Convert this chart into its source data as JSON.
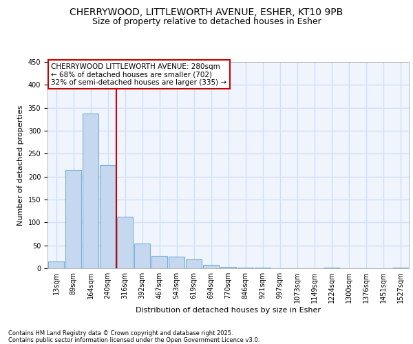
{
  "title1": "CHERRYWOOD, LITTLEWORTH AVENUE, ESHER, KT10 9PB",
  "title2": "Size of property relative to detached houses in Esher",
  "xlabel": "Distribution of detached houses by size in Esher",
  "ylabel": "Number of detached properties",
  "bin_labels": [
    "13sqm",
    "89sqm",
    "164sqm",
    "240sqm",
    "316sqm",
    "392sqm",
    "467sqm",
    "543sqm",
    "619sqm",
    "694sqm",
    "770sqm",
    "846sqm",
    "921sqm",
    "997sqm",
    "1073sqm",
    "1149sqm",
    "1224sqm",
    "1300sqm",
    "1376sqm",
    "1451sqm",
    "1527sqm"
  ],
  "bar_heights": [
    15,
    215,
    338,
    225,
    113,
    54,
    27,
    25,
    20,
    7,
    3,
    1,
    1,
    0,
    0,
    0,
    1,
    0,
    0,
    0,
    1
  ],
  "bar_color": "#c5d8f0",
  "bar_edge_color": "#7aafd4",
  "vline_x": 3.5,
  "vline_color": "#cc0000",
  "ylim": [
    0,
    450
  ],
  "yticks": [
    0,
    50,
    100,
    150,
    200,
    250,
    300,
    350,
    400,
    450
  ],
  "annotation_text": "CHERRYWOOD LITTLEWORTH AVENUE: 280sqm\n← 68% of detached houses are smaller (702)\n32% of semi-detached houses are larger (335) →",
  "bg_color": "#f0f5fd",
  "grid_color": "#d0dff5",
  "footer_text": "Contains HM Land Registry data © Crown copyright and database right 2025.\nContains public sector information licensed under the Open Government Licence v3.0.",
  "title_fontsize": 10,
  "subtitle_fontsize": 9,
  "tick_fontsize": 7,
  "ylabel_fontsize": 8,
  "xlabel_fontsize": 8,
  "annot_fontsize": 7.5
}
